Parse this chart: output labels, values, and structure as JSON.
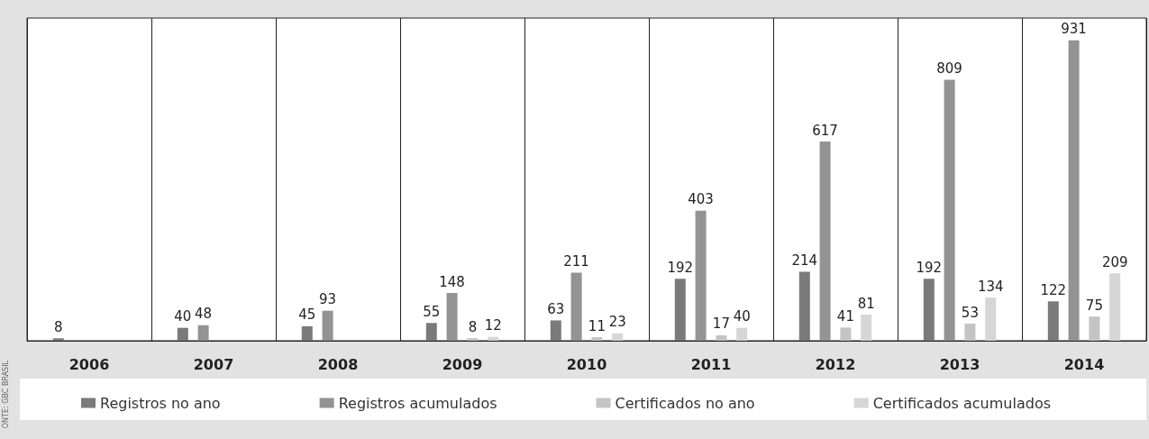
{
  "chart_data": {
    "type": "bar",
    "categories": [
      "2006",
      "2007",
      "2008",
      "2009",
      "2010",
      "2011",
      "2012",
      "2013",
      "2014"
    ],
    "series": [
      {
        "name": "Registros no ano",
        "color": "#7a7a7a",
        "values": [
          8,
          40,
          45,
          55,
          63,
          192,
          214,
          192,
          122
        ]
      },
      {
        "name": "Registros acumulados",
        "color": "#939393",
        "values": [
          null,
          48,
          93,
          148,
          211,
          403,
          617,
          809,
          931
        ]
      },
      {
        "name": "Certificados no ano",
        "color": "#c4c4c4",
        "values": [
          null,
          null,
          null,
          8,
          11,
          17,
          41,
          53,
          75
        ]
      },
      {
        "name": "Certificados acumulados",
        "color": "#d6d6d6",
        "values": [
          null,
          null,
          null,
          12,
          23,
          40,
          81,
          134,
          209
        ]
      }
    ],
    "data_labels": true,
    "grid": "x",
    "legend": "bottom",
    "tick_labels": "x",
    "annotations": [
      "ONTE: GBC BRASIL"
    ]
  }
}
